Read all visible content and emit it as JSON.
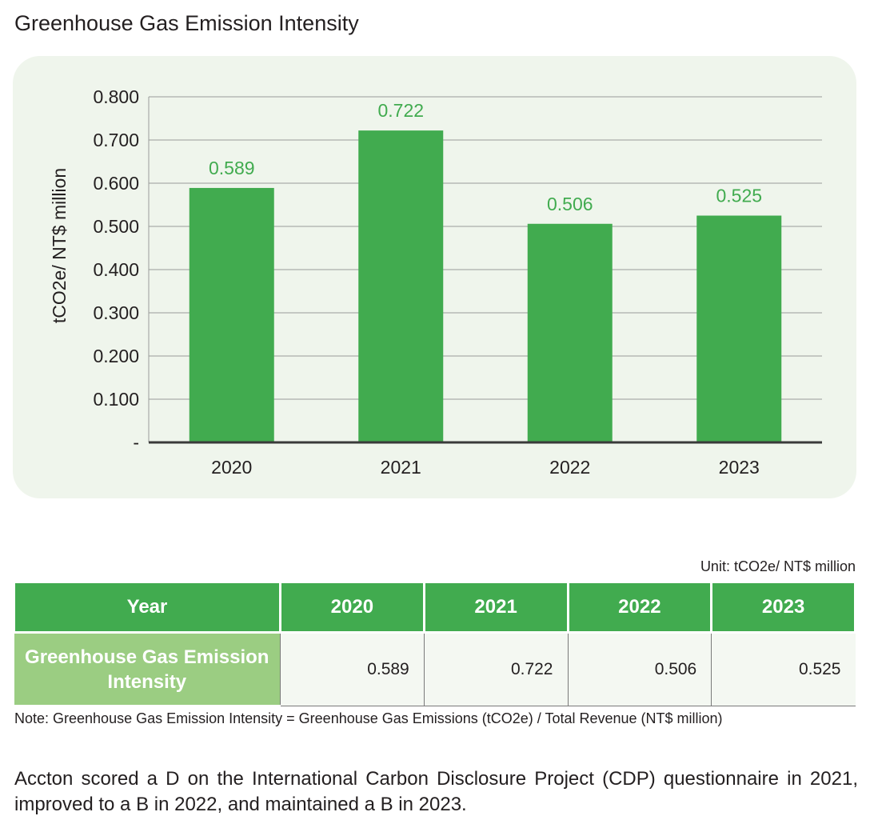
{
  "title": "Greenhouse Gas Emission Intensity",
  "chart_data": {
    "type": "bar",
    "categories": [
      "2020",
      "2021",
      "2022",
      "2023"
    ],
    "values": [
      0.589,
      0.722,
      0.506,
      0.525
    ],
    "value_labels": [
      "0.589",
      "0.722",
      "0.506",
      "0.525"
    ],
    "ylabel": "tCO2e/ NT$ million",
    "ylim": [
      0,
      0.8
    ],
    "yticks": [
      0,
      0.1,
      0.2,
      0.3,
      0.4,
      0.5,
      0.6,
      0.7,
      0.8
    ],
    "ytick_labels": [
      "-",
      "0.100",
      "0.200",
      "0.300",
      "0.400",
      "0.500",
      "0.600",
      "0.700",
      "0.800"
    ],
    "grid": true,
    "bar_color": "#41ab4f",
    "label_color": "#41ab4f"
  },
  "table": {
    "unit": "Unit: tCO2e/ NT$ million",
    "header_label": "Year",
    "years": [
      "2020",
      "2021",
      "2022",
      "2023"
    ],
    "row_label": "Greenhouse Gas Emission Intensity",
    "values": [
      "0.589",
      "0.722",
      "0.506",
      "0.525"
    ]
  },
  "note": "Note: Greenhouse Gas Emission Intensity = Greenhouse Gas Emissions (tCO2e) / Total Revenue (NT$ million)",
  "paragraph": "Accton scored a D on the International Carbon Disclosure Project (CDP) questionnaire in 2021, improved to a B in 2022, and maintained a B in 2023."
}
